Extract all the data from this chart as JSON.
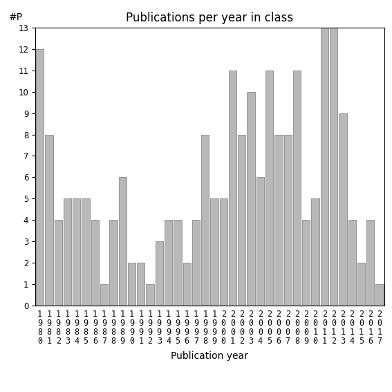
{
  "title": "Publications per year in class",
  "xlabel": "Publication year",
  "ylabel": "#P",
  "bar_color": "#b8b8b8",
  "bar_edgecolor": "#888888",
  "years": [
    "1980",
    "1981",
    "1982",
    "1983",
    "1984",
    "1985",
    "1986",
    "1987",
    "1988",
    "1989",
    "1990",
    "1991",
    "1992",
    "1993",
    "1994",
    "1995",
    "1996",
    "1997",
    "1998",
    "1999",
    "2000",
    "2001",
    "2002",
    "2003",
    "2004",
    "2005",
    "2006",
    "2007",
    "2008",
    "2009",
    "2010",
    "2011",
    "2012",
    "2013",
    "2014",
    "2015",
    "2016",
    "2017"
  ],
  "values": [
    12,
    8,
    4,
    5,
    5,
    5,
    4,
    1,
    4,
    6,
    2,
    2,
    1,
    3,
    4,
    4,
    2,
    4,
    8,
    5,
    5,
    11,
    8,
    10,
    6,
    11,
    8,
    8,
    11,
    4,
    5,
    13,
    13,
    9,
    4,
    2,
    4,
    1
  ],
  "ylim": [
    0,
    13
  ],
  "yticks": [
    0,
    1,
    2,
    3,
    4,
    5,
    6,
    7,
    8,
    9,
    10,
    11,
    12,
    13
  ],
  "background_color": "#ffffff",
  "title_fontsize": 12,
  "axis_label_fontsize": 10,
  "tick_fontsize": 8.5
}
